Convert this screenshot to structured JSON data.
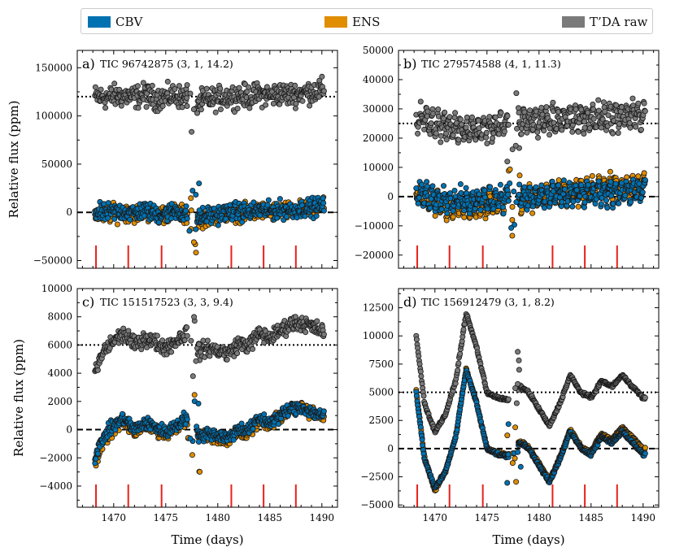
{
  "chart_data": [
    {
      "type": "scatter",
      "panel_label": "a)",
      "title": "TIC 96742875 (3, 1, 14.2)",
      "xlabel": "",
      "ylabel": "Relative flux (ppm)",
      "xlim": [
        1466.5,
        1491.5
      ],
      "ylim": [
        -58000,
        168000
      ],
      "xticks": [
        1470,
        1475,
        1480,
        1485,
        1490
      ],
      "xtick_labels": [
        "",
        "",
        "",
        "",
        ""
      ],
      "yticks": [
        -50000,
        0,
        50000,
        100000,
        150000
      ],
      "ytick_labels": [
        "−50000",
        "0",
        "50000",
        "100000",
        "150000"
      ],
      "raw_offset": 120000,
      "gap": [
        1477.1,
        1478.0
      ],
      "markers": [
        1468.3,
        1471.4,
        1474.6,
        1481.3,
        1484.4,
        1487.5
      ],
      "series": [
        {
          "name": "T’DA raw",
          "x": [
            1468.2,
            1469,
            1470,
            1471,
            1472,
            1473,
            1474,
            1475,
            1476,
            1477,
            1478.2,
            1479,
            1480,
            1481,
            1482,
            1483,
            1484,
            1485,
            1486,
            1487,
            1488,
            1489,
            1490
          ],
          "values": [
            120000,
            119000,
            120500,
            121000,
            119500,
            122000,
            118000,
            119500,
            121500,
            117000,
            114000,
            116500,
            118000,
            120500,
            121000,
            120000,
            122500,
            121000,
            123000,
            122000,
            124000,
            125000,
            127000
          ]
        },
        {
          "name": "CBV",
          "x": [
            1468.2,
            1469,
            1470,
            1471,
            1472,
            1473,
            1474,
            1475,
            1476,
            1477,
            1478.2,
            1479,
            1480,
            1481,
            1482,
            1483,
            1484,
            1485,
            1486,
            1487,
            1488,
            1489,
            1490
          ],
          "values": [
            0,
            -1000,
            500,
            1000,
            -500,
            2000,
            -2000,
            -500,
            1500,
            -3000,
            -6000,
            -3500,
            -2000,
            500,
            1000,
            0,
            2500,
            1000,
            3000,
            2000,
            4000,
            5000,
            7000
          ]
        },
        {
          "name": "ENS",
          "x": [
            1468.2,
            1469,
            1470,
            1471,
            1472,
            1473,
            1474,
            1475,
            1476,
            1477,
            1478.2,
            1479,
            1480,
            1481,
            1482,
            1483,
            1484,
            1485,
            1486,
            1487,
            1488,
            1489,
            1490
          ],
          "values": [
            -2000,
            -2500,
            -1000,
            0,
            -1500,
            1000,
            -3000,
            -1500,
            500,
            -4000,
            -7000,
            -4500,
            -3000,
            -500,
            0,
            -1000,
            1500,
            0,
            2000,
            1000,
            3000,
            4000,
            6000
          ]
        }
      ]
    },
    {
      "type": "scatter",
      "panel_label": "b)",
      "title": "TIC 279574588 (4, 1, 11.3)",
      "xlabel": "",
      "ylabel": "",
      "xlim": [
        1466.5,
        1491.5
      ],
      "ylim": [
        -24500,
        50000
      ],
      "xticks": [
        1470,
        1475,
        1480,
        1485,
        1490
      ],
      "xtick_labels": [
        "",
        "",
        "",
        "",
        ""
      ],
      "yticks": [
        -20000,
        -10000,
        0,
        10000,
        20000,
        30000,
        40000,
        50000
      ],
      "ytick_labels": [
        "−20000",
        "−10000",
        "0",
        "10000",
        "20000",
        "30000",
        "40000",
        "50000"
      ],
      "raw_offset": 25000,
      "gap": [
        1477.1,
        1478.0
      ],
      "markers": [
        1468.3,
        1471.4,
        1474.6,
        1481.3,
        1484.4,
        1487.5
      ],
      "series": [
        {
          "name": "T’DA raw",
          "x": [
            1468.2,
            1469,
            1470,
            1471,
            1472,
            1473,
            1474,
            1475,
            1476,
            1477,
            1478.2,
            1479,
            1480,
            1481,
            1482,
            1483,
            1484,
            1485,
            1486,
            1487,
            1488,
            1489,
            1490
          ],
          "values": [
            27000,
            26500,
            25000,
            24000,
            23500,
            23000,
            23000,
            23500,
            24000,
            25000,
            25500,
            26000,
            26000,
            26000,
            26500,
            26500,
            27000,
            27000,
            27000,
            27500,
            27500,
            28000,
            28000
          ]
        },
        {
          "name": "CBV",
          "x": [
            1468.2,
            1469,
            1470,
            1471,
            1472,
            1473,
            1474,
            1475,
            1476,
            1477,
            1478.2,
            1479,
            1480,
            1481,
            1482,
            1483,
            1484,
            1485,
            1486,
            1487,
            1488,
            1489,
            1490
          ],
          "values": [
            1000,
            500,
            -500,
            -1000,
            -1500,
            -1500,
            -1500,
            -1000,
            -500,
            0,
            -1000,
            -500,
            0,
            0,
            500,
            500,
            1000,
            1000,
            1000,
            1500,
            1500,
            2000,
            2000
          ]
        },
        {
          "name": "ENS",
          "x": [
            1468.2,
            1469,
            1470,
            1471,
            1472,
            1473,
            1474,
            1475,
            1476,
            1477,
            1478.2,
            1479,
            1480,
            1481,
            1482,
            1483,
            1484,
            1485,
            1486,
            1487,
            1488,
            1489,
            1490
          ],
          "values": [
            1500,
            0,
            -2000,
            -3000,
            -3500,
            -4000,
            -4000,
            -3500,
            -2500,
            -1000,
            -1500,
            -500,
            0,
            500,
            1000,
            1500,
            2000,
            2500,
            3000,
            3500,
            3500,
            4000,
            4500
          ]
        }
      ]
    },
    {
      "type": "scatter",
      "panel_label": "c)",
      "title": "TIC 151517523 (3, 3, 9.4)",
      "xlabel": "Time (days)",
      "ylabel": "Relative flux (ppm)",
      "xlim": [
        1466.5,
        1491.5
      ],
      "ylim": [
        -5500,
        10000
      ],
      "xticks": [
        1470,
        1475,
        1480,
        1485,
        1490
      ],
      "xtick_labels": [
        "1470",
        "1475",
        "1480",
        "1485",
        "1490"
      ],
      "yticks": [
        -4000,
        -2000,
        0,
        2000,
        4000,
        6000,
        8000,
        10000
      ],
      "ytick_labels": [
        "−4000",
        "−2000",
        "0",
        "2000",
        "4000",
        "6000",
        "8000",
        "10000"
      ],
      "raw_offset": 6000,
      "gap": [
        1477.1,
        1478.0
      ],
      "markers": [
        1468.3,
        1471.4,
        1474.6,
        1481.3,
        1484.4,
        1487.5
      ],
      "series": [
        {
          "name": "T’DA raw",
          "x": [
            1468.2,
            1469,
            1470,
            1471,
            1472,
            1473,
            1474,
            1475,
            1476,
            1477,
            1478.2,
            1479,
            1480,
            1481,
            1482,
            1483,
            1484,
            1485,
            1486,
            1487,
            1488,
            1489,
            1490
          ],
          "values": [
            4000,
            5500,
            6300,
            6800,
            6000,
            6500,
            6200,
            5800,
            6300,
            6900,
            5500,
            5800,
            5600,
            5400,
            6100,
            6000,
            6800,
            6500,
            7000,
            7500,
            7600,
            7300,
            7000
          ]
        },
        {
          "name": "CBV",
          "x": [
            1468.2,
            1469,
            1470,
            1471,
            1472,
            1473,
            1474,
            1475,
            1476,
            1477,
            1478.2,
            1479,
            1480,
            1481,
            1482,
            1483,
            1484,
            1485,
            1486,
            1487,
            1488,
            1489,
            1490
          ],
          "values": [
            -2000,
            -500,
            300,
            800,
            0,
            500,
            200,
            -200,
            300,
            900,
            -500,
            -200,
            -400,
            -600,
            100,
            0,
            800,
            500,
            1000,
            1500,
            1600,
            1300,
            1000
          ]
        },
        {
          "name": "ENS",
          "x": [
            1468.2,
            1469,
            1470,
            1471,
            1472,
            1473,
            1474,
            1475,
            1476,
            1477,
            1478.2,
            1479,
            1480,
            1481,
            1482,
            1483,
            1484,
            1485,
            1486,
            1487,
            1488,
            1489,
            1490
          ],
          "values": [
            -2500,
            -800,
            0,
            600,
            -200,
            300,
            0,
            -400,
            100,
            700,
            -300,
            -400,
            -600,
            -800,
            -100,
            -200,
            600,
            300,
            900,
            1300,
            1500,
            1200,
            1100
          ]
        }
      ]
    },
    {
      "type": "scatter",
      "panel_label": "d)",
      "title": "TIC 156912479 (3, 1, 8.2)",
      "xlabel": "Time (days)",
      "ylabel": "",
      "xlim": [
        1466.5,
        1491.5
      ],
      "ylim": [
        -5200,
        14200
      ],
      "xticks": [
        1470,
        1475,
        1480,
        1485,
        1490
      ],
      "xtick_labels": [
        "1470",
        "1475",
        "1480",
        "1485",
        "1490"
      ],
      "yticks": [
        -5000,
        -2500,
        0,
        2500,
        5000,
        7500,
        10000,
        12500
      ],
      "ytick_labels": [
        "−5000",
        "−2500",
        "0",
        "2500",
        "5000",
        "7500",
        "10000",
        "12500"
      ],
      "raw_offset": 5000,
      "gap": [
        1477.1,
        1478.0
      ],
      "markers": [
        1468.3,
        1471.4,
        1474.6,
        1481.3,
        1484.4,
        1487.5
      ],
      "series": [
        {
          "name": "T’DA raw",
          "x": [
            1468.2,
            1469,
            1470,
            1471,
            1472,
            1473,
            1474,
            1475,
            1476,
            1477,
            1478.2,
            1479,
            1480,
            1481,
            1482,
            1483,
            1484,
            1485,
            1486,
            1487,
            1488,
            1489,
            1490
          ],
          "values": [
            10000,
            4000,
            1500,
            3000,
            6000,
            12000,
            9000,
            5000,
            4500,
            4300,
            5500,
            5000,
            3500,
            2000,
            4000,
            6500,
            5000,
            4500,
            6000,
            5500,
            6500,
            5500,
            4500
          ]
        },
        {
          "name": "CBV",
          "x": [
            1468.2,
            1469,
            1470,
            1471,
            1472,
            1473,
            1474,
            1475,
            1476,
            1477,
            1478.2,
            1479,
            1480,
            1481,
            1482,
            1483,
            1484,
            1485,
            1486,
            1487,
            1488,
            1489,
            1490
          ],
          "values": [
            5000,
            -1000,
            -3500,
            -2000,
            1000,
            7000,
            4000,
            0,
            -500,
            -700,
            500,
            0,
            -1500,
            -3000,
            -1000,
            1500,
            0,
            -500,
            1000,
            500,
            1500,
            500,
            -500
          ]
        },
        {
          "name": "ENS",
          "x": [
            1468.2,
            1469,
            1470,
            1471,
            1472,
            1473,
            1474,
            1475,
            1476,
            1477,
            1478.2,
            1479,
            1480,
            1481,
            1482,
            1483,
            1484,
            1485,
            1486,
            1487,
            1488,
            1489,
            1490
          ],
          "values": [
            5200,
            -800,
            -3700,
            -2100,
            1100,
            7100,
            4100,
            100,
            -400,
            -600,
            600,
            100,
            -1300,
            -2800,
            -800,
            1700,
            200,
            -300,
            1300,
            800,
            1900,
            1000,
            0
          ]
        }
      ]
    }
  ],
  "legend": {
    "items": [
      {
        "name": "CBV",
        "color": "#0072b2"
      },
      {
        "name": "ENS",
        "color": "#e08d00"
      },
      {
        "name": "T’DA raw",
        "color": "#7a7a7a"
      }
    ]
  },
  "colors": {
    "cbv": "#0072b2",
    "ens": "#e08d00",
    "raw": "#7a7a7a",
    "marker_lines": "#e8211b",
    "edge": "#1a1a1a"
  }
}
